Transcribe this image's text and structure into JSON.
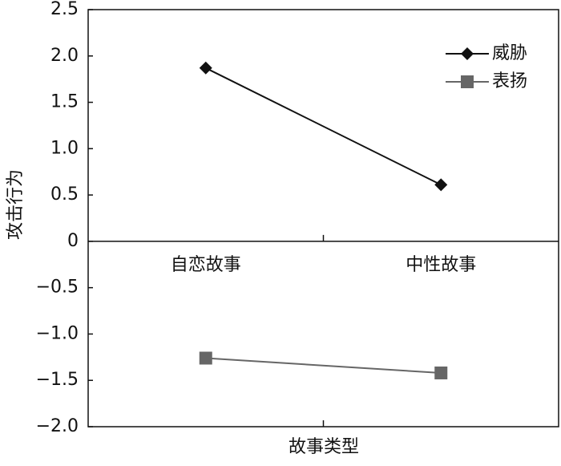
{
  "chart_data": {
    "type": "line",
    "x_label": "故事类型",
    "y_label": "攻击行为",
    "categories": [
      "自恋故事",
      "中性故事"
    ],
    "series": [
      {
        "name": "威胁",
        "color": "#111111",
        "marker": "diamond",
        "values": [
          1.87,
          0.61
        ]
      },
      {
        "name": "表扬",
        "color": "#666666",
        "marker": "square",
        "values": [
          -1.26,
          -1.42
        ]
      }
    ],
    "ylim": [
      -2,
      2.5
    ],
    "yticks": [
      {
        "value": 2.5,
        "label": "2.5"
      },
      {
        "value": 2,
        "label": "2.0"
      },
      {
        "value": 1.5,
        "label": "1.5"
      },
      {
        "value": 1,
        "label": "1.0"
      },
      {
        "value": 0.5,
        "label": "0.5"
      },
      0,
      {
        "value": -0.5,
        "label": "−0.5"
      },
      {
        "value": -1,
        "label": "−1.0"
      },
      {
        "value": -1.5,
        "label": "−1.5"
      },
      {
        "value": -2,
        "label": "−2.0"
      }
    ],
    "legend": "upper-right"
  }
}
